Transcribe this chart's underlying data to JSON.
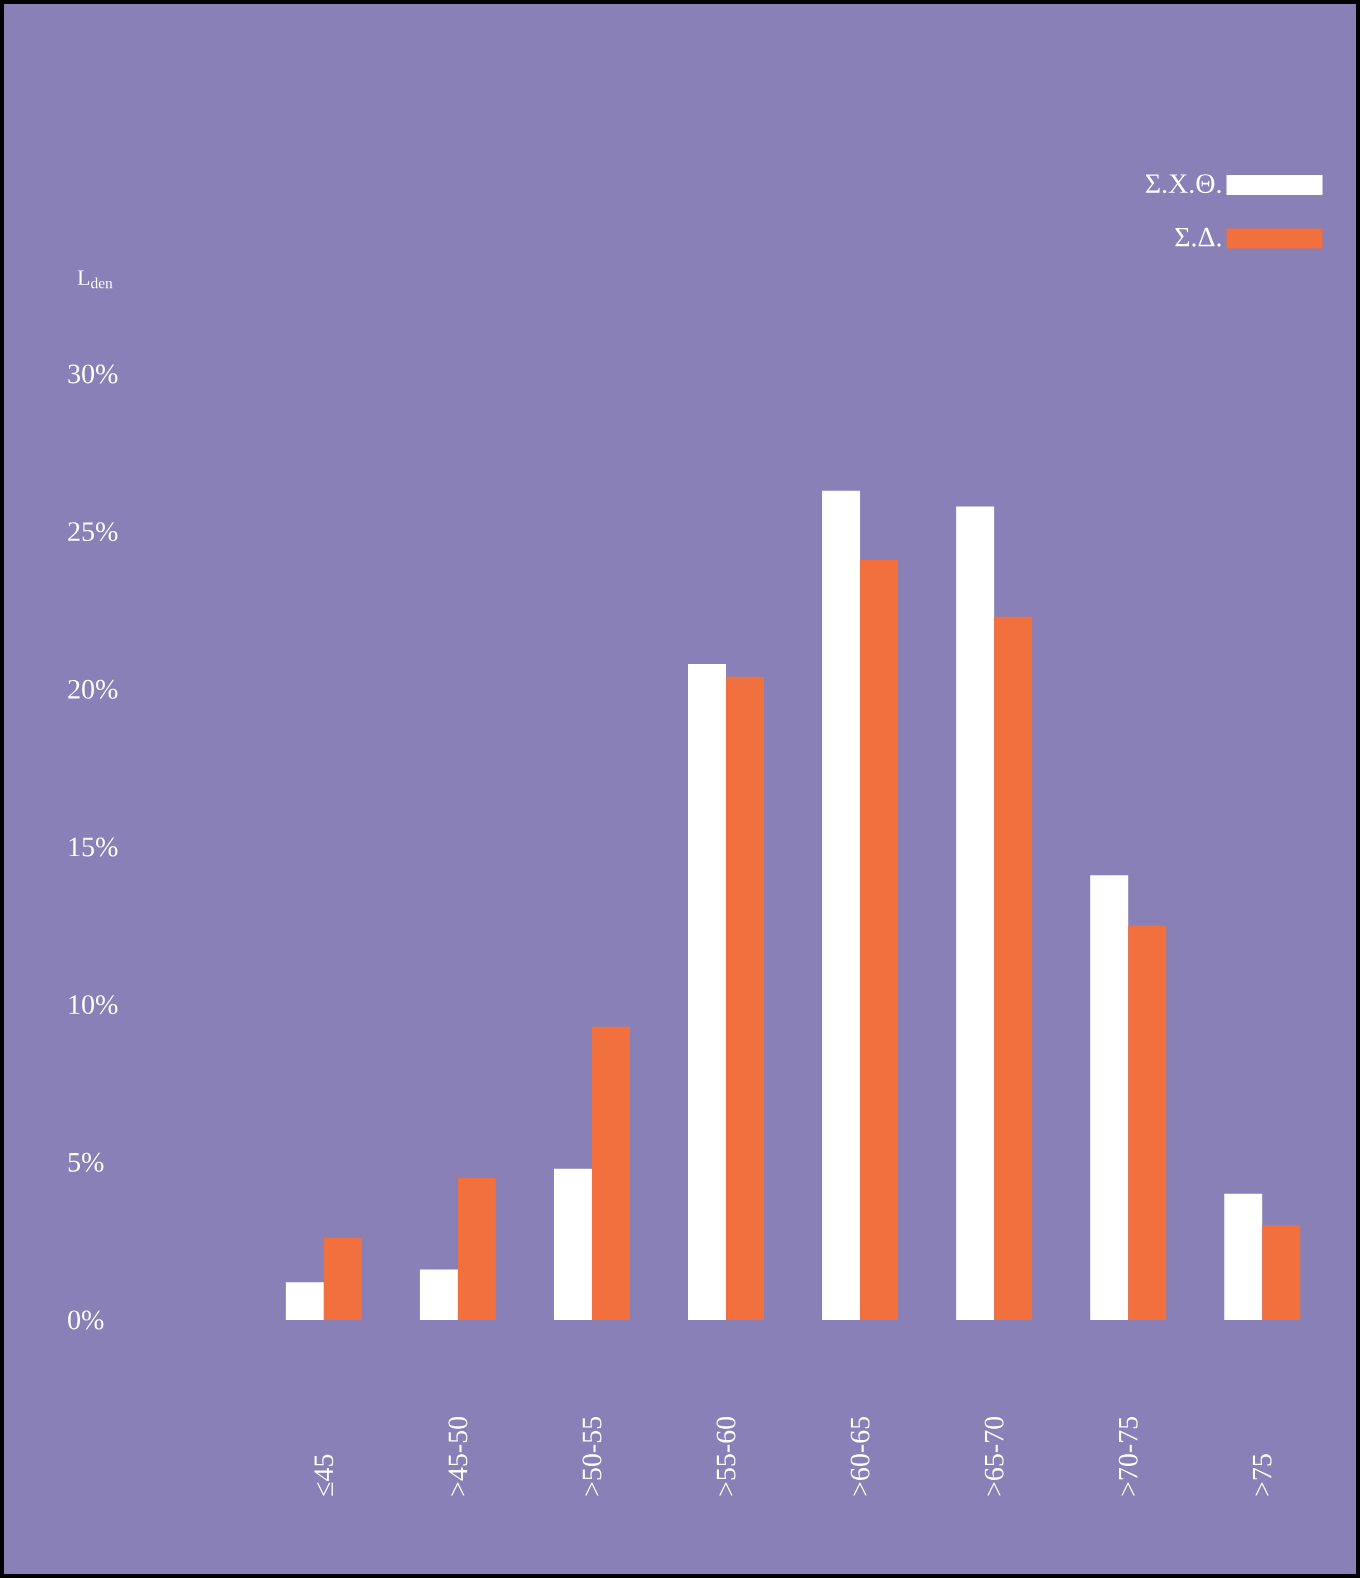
{
  "chart_data": {
    "type": "bar",
    "ylabel": "L$_{den}$",
    "categories": [
      "≤45",
      ">45-50",
      ">50-55",
      ">55-60",
      ">60-65",
      ">65-70",
      ">70-75",
      ">75"
    ],
    "series": [
      {
        "name": "Σ.Χ.Θ.",
        "color": "#ffffff",
        "values": [
          1.2,
          1.6,
          4.8,
          20.8,
          26.3,
          25.8,
          14.1,
          4.0
        ]
      },
      {
        "name": "Σ.Δ.",
        "color": "#f26f3e",
        "values": [
          2.6,
          4.5,
          9.3,
          20.4,
          24.1,
          22.3,
          12.5,
          3.0
        ]
      }
    ],
    "ylim": [
      0,
      30
    ],
    "yticks": [
      {
        "value": 0,
        "label": "0%"
      },
      {
        "value": 5,
        "label": "5%"
      },
      {
        "value": 10,
        "label": "10%"
      },
      {
        "value": 15,
        "label": "15%"
      },
      {
        "value": 20,
        "label": "20%"
      },
      {
        "value": 25,
        "label": "25%"
      },
      {
        "value": 30,
        "label": "30%"
      }
    ],
    "grid": false,
    "legend": "top right"
  }
}
